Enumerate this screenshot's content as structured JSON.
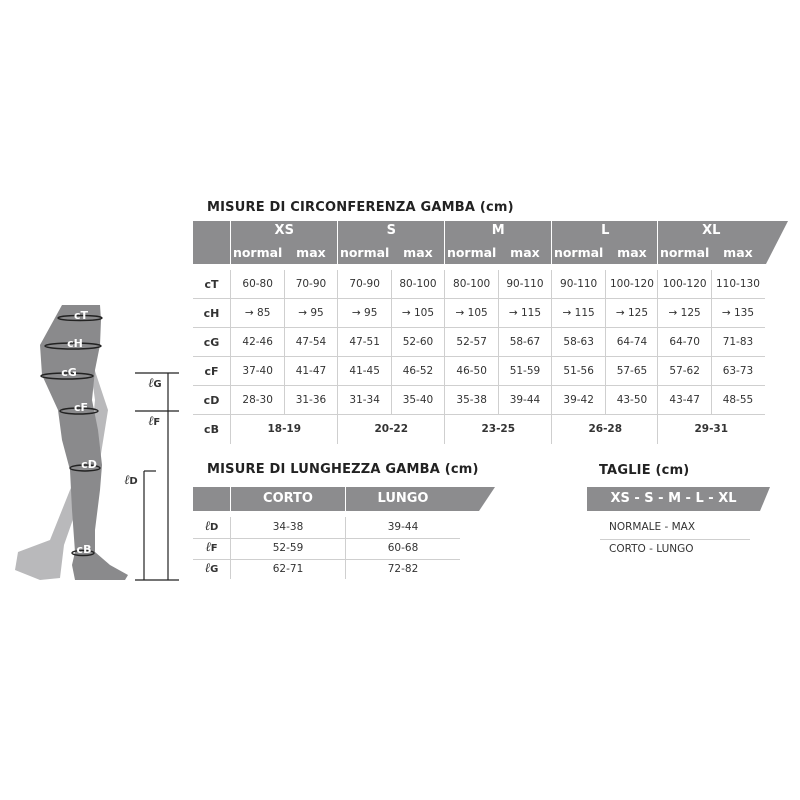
{
  "circumference": {
    "title": "MISURE DI CIRCONFERENZA GAMBA (cm)",
    "sizes": [
      "XS",
      "S",
      "M",
      "L",
      "XL"
    ],
    "sub_headers": [
      "normal",
      "max"
    ],
    "rows": [
      {
        "label": "cT",
        "values": [
          "60-80",
          "70-90",
          "70-90",
          "80-100",
          "80-100",
          "90-110",
          "90-110",
          "100-120",
          "100-120",
          "110-130"
        ]
      },
      {
        "label": "cH",
        "values": [
          "→ 85",
          "→ 95",
          "→ 95",
          "→ 105",
          "→ 105",
          "→ 115",
          "→ 115",
          "→ 125",
          "→ 125",
          "→ 135"
        ]
      },
      {
        "label": "cG",
        "values": [
          "42-46",
          "47-54",
          "47-51",
          "52-60",
          "52-57",
          "58-67",
          "58-63",
          "64-74",
          "64-70",
          "71-83"
        ]
      },
      {
        "label": "cF",
        "values": [
          "37-40",
          "41-47",
          "41-45",
          "46-52",
          "46-50",
          "51-59",
          "51-56",
          "57-65",
          "57-62",
          "63-73"
        ]
      },
      {
        "label": "cD",
        "values": [
          "28-30",
          "31-36",
          "31-34",
          "35-40",
          "35-38",
          "39-44",
          "39-42",
          "43-50",
          "43-47",
          "48-55"
        ]
      }
    ],
    "cB": {
      "label": "cB",
      "values": [
        "18-19",
        "20-22",
        "23-25",
        "26-28",
        "29-31"
      ]
    }
  },
  "length": {
    "title": "MISURE DI LUNGHEZZA GAMBA (cm)",
    "headers": [
      "CORTO",
      "LUNGO"
    ],
    "rows": [
      {
        "symbol": "ℓ",
        "sub": "D",
        "values": [
          "34-38",
          "39-44"
        ]
      },
      {
        "symbol": "ℓ",
        "sub": "F",
        "values": [
          "52-59",
          "60-68"
        ]
      },
      {
        "symbol": "ℓ",
        "sub": "G",
        "values": [
          "62-71",
          "72-82"
        ]
      }
    ]
  },
  "taglie": {
    "title": "TAGLIE (cm)",
    "band": "XS - S - M - L - XL",
    "lines": [
      "NORMALE - MAX",
      "CORTO - LUNGO"
    ]
  },
  "figure": {
    "circ_labels": [
      "cT",
      "cH",
      "cG",
      "cF",
      "cD",
      "cB"
    ],
    "length_labels": [
      {
        "symbol": "ℓ",
        "sub": "G"
      },
      {
        "symbol": "ℓ",
        "sub": "F"
      },
      {
        "symbol": "ℓ",
        "sub": "D"
      }
    ],
    "colors": {
      "band": "#8c8c8e",
      "leg_front": "#8a8a8c",
      "leg_back": "#b9b9bb"
    }
  }
}
